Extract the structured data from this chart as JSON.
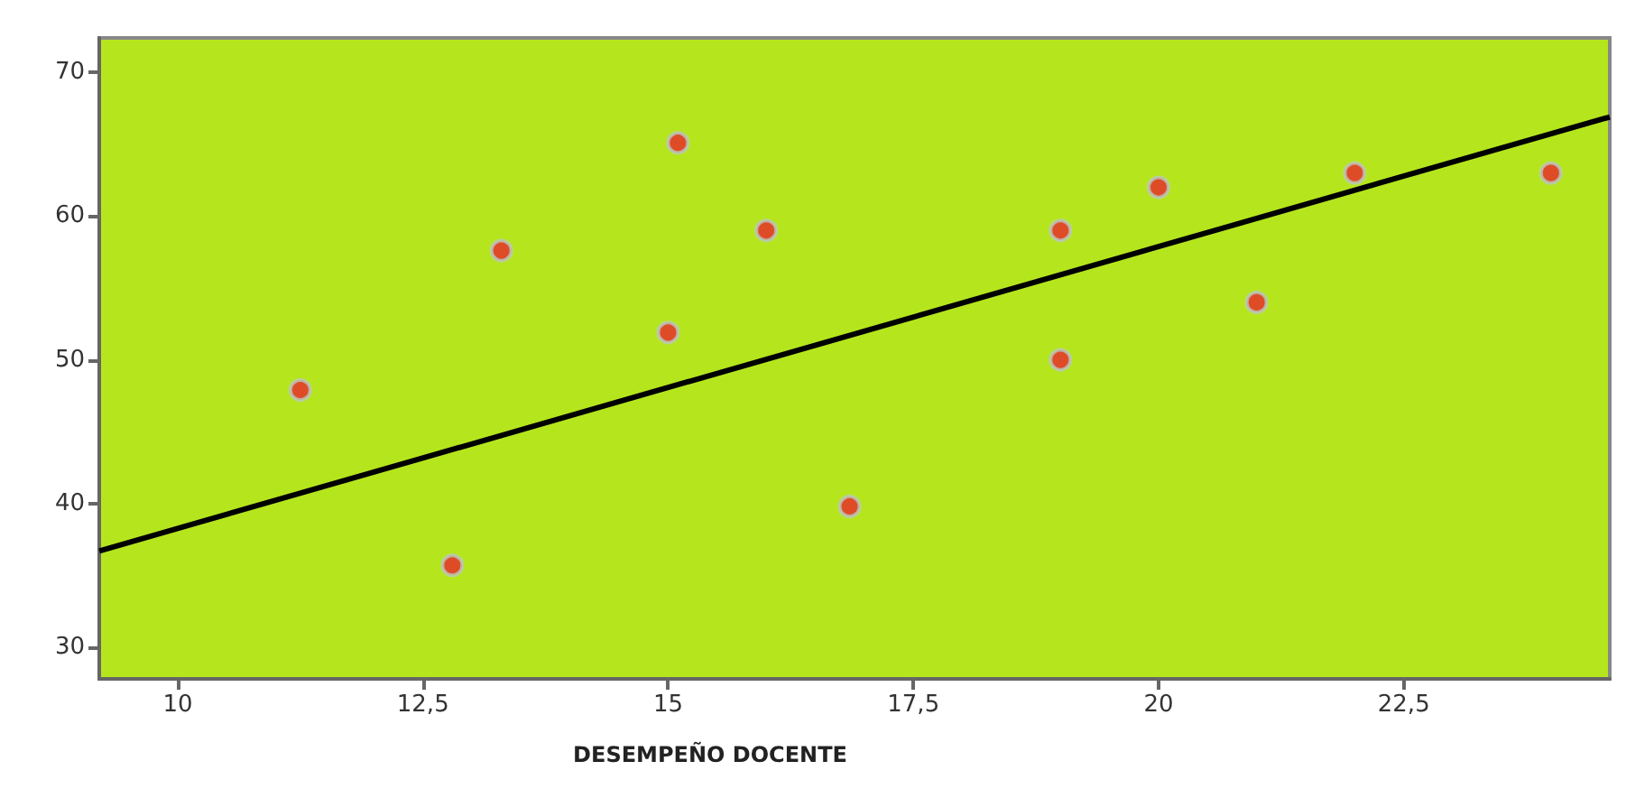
{
  "chart_data": {
    "type": "scatter",
    "xlabel": "DESEMPEÑO DOCENTE",
    "xlim": [
      9.2,
      24.6
    ],
    "ylim": [
      27.8,
      72.4
    ],
    "xticks": [
      10,
      {
        "value": 12.5,
        "label": "12,5"
      },
      15,
      {
        "value": 17.5,
        "label": "17,5"
      },
      20,
      {
        "value": 22.5,
        "label": "22,5"
      }
    ],
    "yticks": [
      30,
      40,
      50,
      60,
      70
    ],
    "grid": false,
    "marker": "circle",
    "series": [
      {
        "color": "#e8262b",
        "x": [
          11.25,
          12.8,
          13.3,
          15.1,
          15.0,
          16.0,
          16.85,
          19.0,
          19.0,
          20.0,
          21.0,
          22.0,
          24.0
        ],
        "values": [
          47.9,
          35.7,
          57.6,
          65.1,
          51.9,
          59.0,
          39.8,
          59.0,
          50.0,
          62.0,
          54.0,
          63.0,
          63.0
        ]
      },
      {
        "type": "line",
        "color": "#000000",
        "marker": "none",
        "line_style": "solid",
        "x": [
          9.2,
          24.6
        ],
        "values": [
          36.7,
          66.9
        ]
      }
    ]
  }
}
